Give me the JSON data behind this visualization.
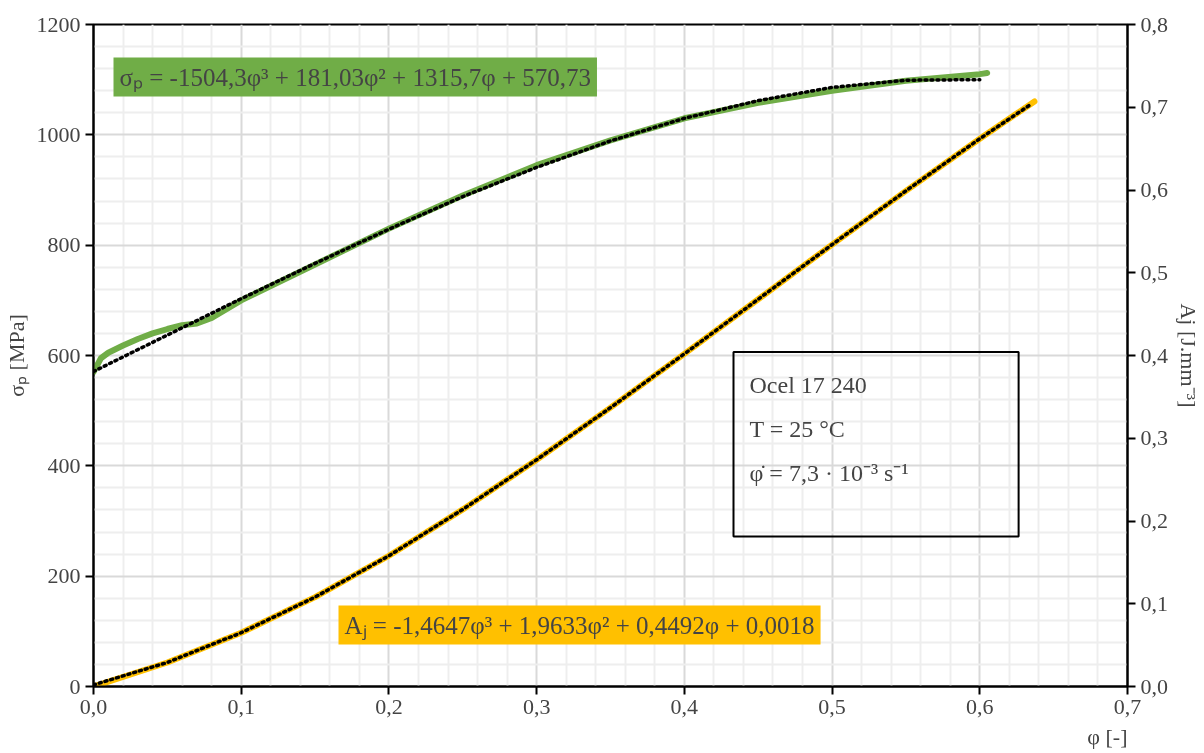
{
  "chart_data": {
    "type": "line",
    "xlabel": "φ [-]",
    "ylabel": "σₚ [MPa]",
    "y2label": "Aj [J.mm⁻³]",
    "xlim": [
      0,
      0.7
    ],
    "xticks": [
      {
        "value": 0,
        "label": "0,0"
      },
      {
        "value": 0.1,
        "label": "0,1"
      },
      {
        "value": 0.2,
        "label": "0,2"
      },
      {
        "value": 0.3,
        "label": "0,3"
      },
      {
        "value": 0.4,
        "label": "0,4"
      },
      {
        "value": 0.5,
        "label": "0,5"
      },
      {
        "value": 0.6,
        "label": "0,6"
      },
      {
        "value": 0.7,
        "label": "0,7"
      }
    ],
    "ylim": [
      0,
      1200
    ],
    "yticks": [
      0,
      200,
      400,
      600,
      800,
      1000,
      1200
    ],
    "y2lim": [
      0,
      0.8
    ],
    "y2ticks": [
      {
        "value": 0,
        "label": "0,0"
      },
      {
        "value": 0.1,
        "label": "0,1"
      },
      {
        "value": 0.2,
        "label": "0,2"
      },
      {
        "value": 0.3,
        "label": "0,3"
      },
      {
        "value": 0.4,
        "label": "0,4"
      },
      {
        "value": 0.5,
        "label": "0,5"
      },
      {
        "value": 0.6,
        "label": "0,6"
      },
      {
        "value": 0.7,
        "label": "0,7"
      },
      {
        "value": 0.8,
        "label": "0,8"
      }
    ],
    "grid": true,
    "marker": "none",
    "series": [
      {
        "color": "#70ad47",
        "line_style": "solid",
        "x": [
          0,
          0.005,
          0.01,
          0.02,
          0.03,
          0.04,
          0.05,
          0.06,
          0.07,
          0.08,
          0.1,
          0.15,
          0.2,
          0.25,
          0.3,
          0.35,
          0.4,
          0.45,
          0.5,
          0.55,
          0.6,
          0.605
        ],
        "values": [
          570,
          595,
          605,
          618,
          630,
          640,
          648,
          655,
          658,
          668,
          700,
          765,
          830,
          890,
          945,
          990,
          1030,
          1058,
          1080,
          1098,
          1110,
          1112
        ]
      },
      {
        "color": "#000000",
        "line_style": "dotted",
        "x": [
          0,
          0.05,
          0.1,
          0.15,
          0.2,
          0.25,
          0.3,
          0.35,
          0.4,
          0.45,
          0.5,
          0.55,
          0.6
        ],
        "values": [
          571,
          637,
          703,
          767,
          829,
          888,
          941,
          989,
          1030,
          1062,
          1086,
          1099,
          1100
        ]
      },
      {
        "color": "#ffc000",
        "line_style": "solid",
        "axis": "y2",
        "x": [
          0,
          0.05,
          0.1,
          0.15,
          0.2,
          0.25,
          0.3,
          0.35,
          0.4,
          0.45,
          0.5,
          0.55,
          0.6,
          0.637
        ],
        "values": [
          0,
          0.029,
          0.065,
          0.108,
          0.158,
          0.214,
          0.274,
          0.337,
          0.402,
          0.468,
          0.534,
          0.599,
          0.662,
          0.707
        ]
      },
      {
        "color": "#000000",
        "line_style": "dotted",
        "axis": "y2",
        "x": [
          0,
          0.05,
          0.1,
          0.15,
          0.2,
          0.25,
          0.3,
          0.35,
          0.4,
          0.45,
          0.5,
          0.55,
          0.6,
          0.635
        ],
        "values": [
          0.002,
          0.029,
          0.065,
          0.108,
          0.158,
          0.214,
          0.274,
          0.337,
          0.402,
          0.468,
          0.534,
          0.599,
          0.662,
          0.704
        ]
      }
    ],
    "annotations": [
      "σₚ = -1504,3φ³ + 181,03φ² + 1315,7φ + 570,73",
      "Aⱼ = -1,4647φ³ + 1,9633φ² + 0,4492φ + 0,0018",
      "Ocel 17 240",
      "T = 25 °C",
      "φ̇ = 7,3 · 10⁻³ s⁻¹"
    ]
  }
}
